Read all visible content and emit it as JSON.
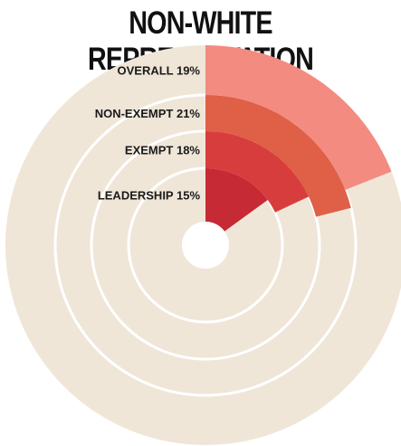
{
  "title": "NON-WHITE REPRESENTATION",
  "colors": {
    "background_ring": "#efe6d8",
    "ring_divider": "#ffffff",
    "label_text": "#1a1a1a"
  },
  "chart_data": {
    "type": "radial-bar",
    "title": "NON-WHITE REPRESENTATION",
    "unit": "%",
    "max_value": 100,
    "series": [
      {
        "name": "OVERALL",
        "value": 19,
        "label": "OVERALL 19%",
        "color": "#f38b80"
      },
      {
        "name": "NON-EXEMPT",
        "value": 21,
        "label": "NON-EXEMPT 21%",
        "color": "#e05f47"
      },
      {
        "name": "EXEMPT",
        "value": 18,
        "label": "EXEMPT 18%",
        "color": "#d83d3d"
      },
      {
        "name": "LEADERSHIP",
        "value": 15,
        "label": "LEADERSHIP 15%",
        "color": "#c62a35"
      }
    ]
  }
}
